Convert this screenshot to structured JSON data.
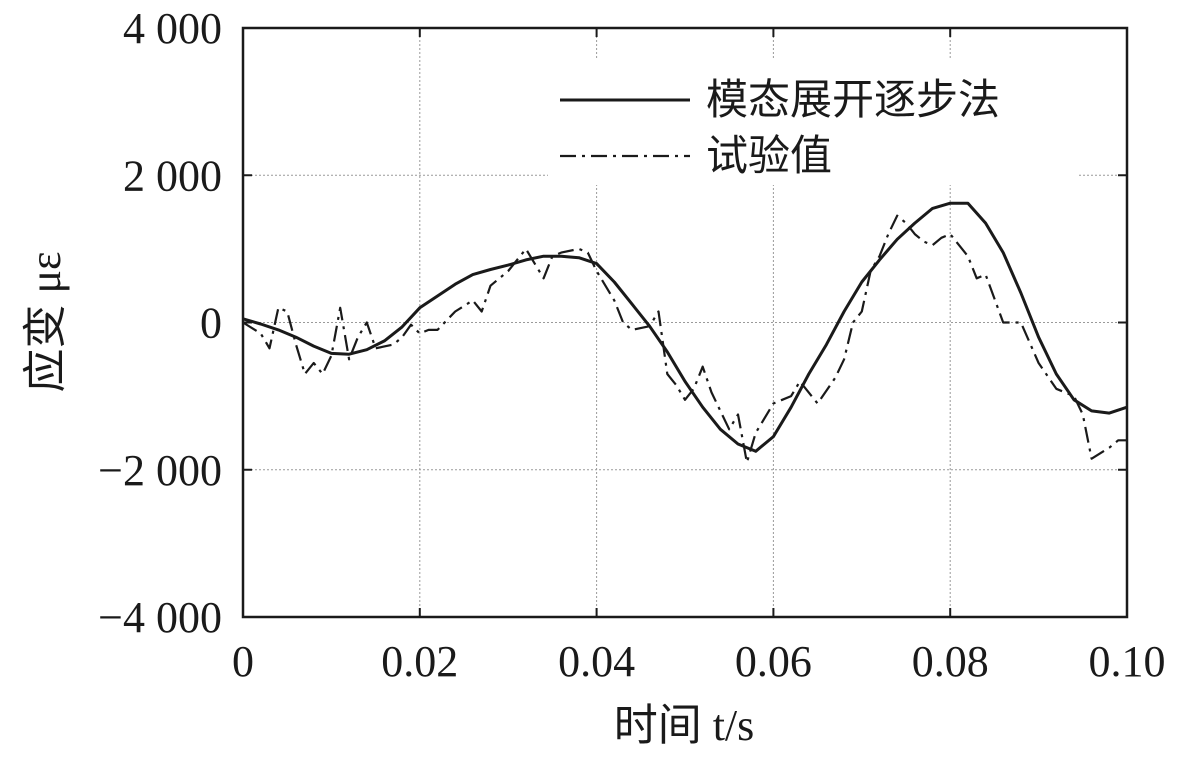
{
  "chart_data": {
    "type": "line",
    "xlabel": "时间 t/s",
    "ylabel": "应变 με",
    "xlim": [
      0,
      0.1
    ],
    "ylim": [
      -4000,
      4000
    ],
    "x_ticks": [
      0,
      0.02,
      0.04,
      0.06,
      0.08,
      0.1
    ],
    "x_tick_labels": [
      "0",
      "0.02",
      "0.04",
      "0.06",
      "0.08",
      "0.10"
    ],
    "y_ticks": [
      -4000,
      -2000,
      0,
      2000,
      4000
    ],
    "y_tick_labels": [
      "−4 000",
      "−2 000",
      "0",
      "2 000",
      "4 000"
    ],
    "grid": true,
    "legend_position": "top-right",
    "series": [
      {
        "name": "模态展开逐步法",
        "style": "solid",
        "color": "#1a1a1a",
        "x": [
          0,
          0.002,
          0.004,
          0.006,
          0.008,
          0.01,
          0.012,
          0.014,
          0.016,
          0.018,
          0.02,
          0.022,
          0.024,
          0.026,
          0.028,
          0.03,
          0.032,
          0.034,
          0.036,
          0.038,
          0.04,
          0.042,
          0.044,
          0.046,
          0.048,
          0.05,
          0.052,
          0.054,
          0.056,
          0.058,
          0.06,
          0.062,
          0.064,
          0.066,
          0.068,
          0.07,
          0.072,
          0.074,
          0.076,
          0.078,
          0.08,
          0.082,
          0.084,
          0.086,
          0.088,
          0.09,
          0.092,
          0.094,
          0.096,
          0.098,
          0.1
        ],
        "y": [
          50,
          -20,
          -100,
          -200,
          -320,
          -420,
          -430,
          -370,
          -250,
          -60,
          200,
          360,
          520,
          650,
          720,
          780,
          850,
          900,
          900,
          880,
          800,
          550,
          250,
          -50,
          -400,
          -800,
          -1150,
          -1450,
          -1650,
          -1750,
          -1550,
          -1150,
          -700,
          -300,
          150,
          550,
          850,
          1130,
          1350,
          1550,
          1620,
          1620,
          1350,
          950,
          400,
          -200,
          -700,
          -1050,
          -1200,
          -1230,
          -1150
        ]
      },
      {
        "name": "试验值",
        "style": "dashdot",
        "color": "#1a1a1a",
        "x": [
          0,
          0.002,
          0.003,
          0.004,
          0.005,
          0.006,
          0.007,
          0.008,
          0.009,
          0.01,
          0.011,
          0.012,
          0.013,
          0.014,
          0.015,
          0.017,
          0.018,
          0.019,
          0.02,
          0.021,
          0.022,
          0.024,
          0.026,
          0.027,
          0.028,
          0.03,
          0.032,
          0.033,
          0.034,
          0.035,
          0.036,
          0.038,
          0.039,
          0.04,
          0.042,
          0.043,
          0.044,
          0.046,
          0.047,
          0.048,
          0.049,
          0.05,
          0.051,
          0.052,
          0.053,
          0.055,
          0.056,
          0.057,
          0.058,
          0.06,
          0.061,
          0.062,
          0.063,
          0.065,
          0.067,
          0.068,
          0.069,
          0.07,
          0.071,
          0.072,
          0.073,
          0.074,
          0.075,
          0.076,
          0.077,
          0.078,
          0.079,
          0.08,
          0.082,
          0.083,
          0.084,
          0.086,
          0.088,
          0.09,
          0.092,
          0.094,
          0.095,
          0.096,
          0.098,
          0.099,
          0.1
        ],
        "y": [
          0,
          -150,
          -350,
          200,
          150,
          -300,
          -700,
          -550,
          -700,
          -450,
          200,
          -500,
          -200,
          0,
          -350,
          -300,
          -200,
          -30,
          -150,
          -100,
          -100,
          150,
          300,
          150,
          500,
          700,
          1000,
          800,
          600,
          900,
          950,
          1000,
          950,
          700,
          300,
          0,
          -100,
          -50,
          150,
          -700,
          -850,
          -1050,
          -900,
          -600,
          -950,
          -1450,
          -1250,
          -1900,
          -1500,
          -1100,
          -1050,
          -1000,
          -800,
          -1100,
          -750,
          -500,
          0,
          150,
          700,
          900,
          1200,
          1450,
          1350,
          1200,
          1100,
          1050,
          1150,
          1200,
          900,
          600,
          650,
          0,
          0,
          -550,
          -900,
          -1000,
          -1250,
          -1850,
          -1700,
          -1600,
          -1600
        ]
      }
    ]
  }
}
